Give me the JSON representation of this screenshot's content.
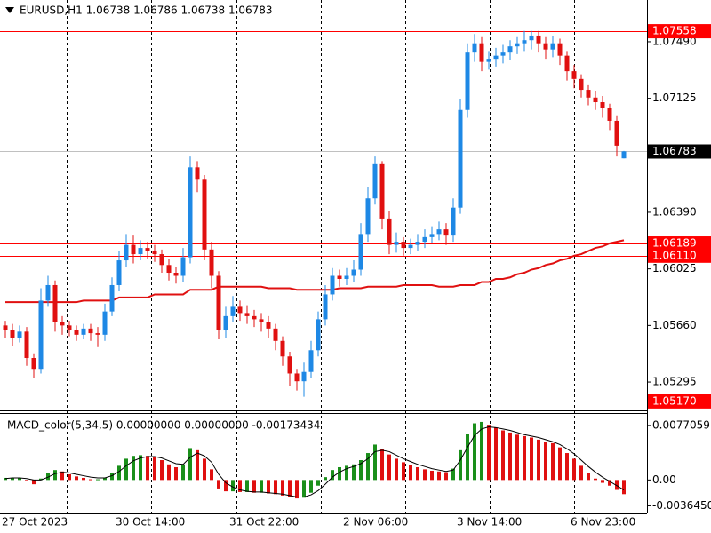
{
  "chart_data": [
    {
      "type": "candlestick",
      "title": "EURUSD,H1  1.06738 1.06786 1.06738 1.06783",
      "categories": [
        "27 Oct 2023",
        null,
        null,
        null,
        null,
        null,
        null,
        null,
        null,
        null,
        null,
        null,
        null,
        null,
        null,
        null,
        "30 Oct 14:00",
        null,
        null,
        null,
        null,
        null,
        null,
        null,
        null,
        null,
        null,
        null,
        null,
        null,
        null,
        null,
        "31 Oct 22:00",
        null,
        null,
        null,
        null,
        null,
        null,
        null,
        null,
        null,
        null,
        null,
        null,
        null,
        null,
        null,
        "2 Nov 06:00",
        null,
        null,
        null,
        null,
        null,
        null,
        null,
        null,
        null,
        null,
        null,
        null,
        null,
        null,
        null,
        "3 Nov 14:00",
        null,
        null,
        null,
        null,
        null,
        null,
        null,
        null,
        null,
        null,
        null,
        null,
        null,
        null,
        null,
        "6 Nov 23:00",
        null,
        null,
        null,
        null,
        null,
        null,
        null
      ],
      "open": [
        1.0566,
        1.0563,
        1.0558,
        1.0562,
        1.0545,
        1.0538,
        1.0582,
        1.0592,
        1.0568,
        1.0566,
        1.0563,
        1.056,
        1.0564,
        1.0561,
        1.056,
        1.0575,
        1.0592,
        1.0608,
        1.0618,
        1.0612,
        1.0616,
        1.0614,
        1.0612,
        1.0605,
        1.06,
        1.0598,
        1.061,
        1.0668,
        1.066,
        1.0615,
        1.0598,
        1.0563,
        1.0572,
        1.0578,
        1.0574,
        1.0572,
        1.057,
        1.0568,
        1.0564,
        1.0556,
        1.0546,
        1.0535,
        1.053,
        1.0536,
        1.055,
        1.057,
        1.0586,
        1.0598,
        1.0596,
        1.0598,
        1.0602,
        1.0625,
        1.0648,
        1.067,
        1.0635,
        1.0618,
        1.062,
        1.0616,
        1.0618,
        1.062,
        1.0623,
        1.0625,
        1.0628,
        1.0624,
        1.0642,
        1.0705,
        1.0742,
        1.0748,
        1.0736,
        1.0738,
        1.074,
        1.0742,
        1.0746,
        1.0748,
        1.075,
        1.0753,
        1.0748,
        1.0744,
        1.0748,
        1.074,
        1.073,
        1.0725,
        1.0718,
        1.0713,
        1.071,
        1.0706,
        1.0698,
        1.06738
      ],
      "high": [
        1.0569,
        1.0567,
        1.0566,
        1.0565,
        1.0548,
        1.059,
        1.0598,
        1.0595,
        1.0572,
        1.0569,
        1.0566,
        1.0567,
        1.0567,
        1.0565,
        1.058,
        1.0597,
        1.0614,
        1.0625,
        1.0624,
        1.0621,
        1.062,
        1.0618,
        1.0615,
        1.0609,
        1.0604,
        1.0616,
        1.0675,
        1.0672,
        1.0663,
        1.062,
        1.0601,
        1.0578,
        1.0585,
        1.0582,
        1.0579,
        1.0576,
        1.0574,
        1.0572,
        1.0567,
        1.0559,
        1.0549,
        1.0538,
        1.0542,
        1.0556,
        1.0575,
        1.0592,
        1.0603,
        1.0602,
        1.0603,
        1.0608,
        1.0632,
        1.0655,
        1.0675,
        1.0672,
        1.064,
        1.0626,
        1.0623,
        1.0622,
        1.0625,
        1.0628,
        1.063,
        1.0633,
        1.0632,
        1.0648,
        1.0712,
        1.0748,
        1.0754,
        1.0752,
        1.0743,
        1.0745,
        1.0747,
        1.075,
        1.0752,
        1.0756,
        1.0756,
        1.0756,
        1.0752,
        1.0753,
        1.0751,
        1.0743,
        1.0734,
        1.0728,
        1.0721,
        1.0717,
        1.0714,
        1.0709,
        1.0701,
        1.06786
      ],
      "low": [
        1.0558,
        1.0553,
        1.0555,
        1.054,
        1.0532,
        1.0535,
        1.0578,
        1.0562,
        1.056,
        1.0559,
        1.0556,
        1.0557,
        1.0556,
        1.0552,
        1.0556,
        1.0572,
        1.0588,
        1.0604,
        1.0606,
        1.0608,
        1.0609,
        1.0607,
        1.06,
        1.0595,
        1.0593,
        1.0594,
        1.0606,
        1.0652,
        1.0608,
        1.059,
        1.0557,
        1.0558,
        1.0568,
        1.0569,
        1.0567,
        1.0565,
        1.0562,
        1.0558,
        1.055,
        1.054,
        1.0527,
        1.0524,
        1.052,
        1.0532,
        1.0546,
        1.0566,
        1.0582,
        1.0591,
        1.0592,
        1.0594,
        1.0598,
        1.062,
        1.0644,
        1.0628,
        1.0612,
        1.0613,
        1.0611,
        1.0612,
        1.0614,
        1.0616,
        1.0619,
        1.0621,
        1.0618,
        1.062,
        1.0638,
        1.07,
        1.0736,
        1.073,
        1.0731,
        1.0733,
        1.0735,
        1.0737,
        1.0741,
        1.0743,
        1.0744,
        1.0742,
        1.0738,
        1.0739,
        1.0734,
        1.0724,
        1.0719,
        1.0713,
        1.0708,
        1.0705,
        1.07,
        1.0692,
        1.0675,
        1.06738
      ],
      "close": [
        1.0563,
        1.0558,
        1.0562,
        1.0545,
        1.0538,
        1.0582,
        1.0592,
        1.0568,
        1.0566,
        1.0563,
        1.056,
        1.0564,
        1.0561,
        1.056,
        1.0575,
        1.0592,
        1.0608,
        1.0618,
        1.0612,
        1.0616,
        1.0614,
        1.0612,
        1.0605,
        1.06,
        1.0598,
        1.061,
        1.0668,
        1.066,
        1.0615,
        1.0598,
        1.0563,
        1.0572,
        1.0578,
        1.0574,
        1.0572,
        1.057,
        1.0568,
        1.0564,
        1.0556,
        1.0546,
        1.0535,
        1.053,
        1.0536,
        1.055,
        1.057,
        1.0586,
        1.0598,
        1.0596,
        1.0598,
        1.0602,
        1.0625,
        1.0648,
        1.067,
        1.0635,
        1.0618,
        1.062,
        1.0616,
        1.0618,
        1.062,
        1.0623,
        1.0625,
        1.0628,
        1.0624,
        1.0642,
        1.0705,
        1.0742,
        1.0748,
        1.0736,
        1.0738,
        1.074,
        1.0742,
        1.0746,
        1.0748,
        1.075,
        1.0753,
        1.0748,
        1.0744,
        1.0748,
        1.074,
        1.073,
        1.0725,
        1.0718,
        1.0713,
        1.071,
        1.0706,
        1.0698,
        1.0682,
        1.06783
      ],
      "ma": [
        1.0581,
        1.0581,
        1.0581,
        1.0581,
        1.0581,
        1.0581,
        1.0581,
        1.0581,
        1.0581,
        1.0581,
        1.0581,
        1.0582,
        1.0582,
        1.0582,
        1.0582,
        1.0582,
        1.0584,
        1.0584,
        1.0584,
        1.0584,
        1.0584,
        1.0586,
        1.0586,
        1.0586,
        1.0586,
        1.0586,
        1.0589,
        1.0589,
        1.0589,
        1.0589,
        1.0591,
        1.0591,
        1.0591,
        1.0591,
        1.0591,
        1.0591,
        1.0591,
        1.059,
        1.059,
        1.059,
        1.059,
        1.0589,
        1.0589,
        1.0589,
        1.0589,
        1.0589,
        1.0589,
        1.059,
        1.059,
        1.059,
        1.059,
        1.0591,
        1.0591,
        1.0591,
        1.0591,
        1.0591,
        1.0592,
        1.0592,
        1.0592,
        1.0592,
        1.0592,
        1.0591,
        1.0591,
        1.0591,
        1.0592,
        1.0592,
        1.0592,
        1.0594,
        1.0594,
        1.0596,
        1.0596,
        1.0597,
        1.0599,
        1.06,
        1.0602,
        1.0603,
        1.0605,
        1.0606,
        1.0608,
        1.0609,
        1.0611,
        1.0612,
        1.0614,
        1.0616,
        1.0617,
        1.0619,
        1.062,
        1.0621
      ],
      "up_color": "#1e88e5",
      "down_color": "#e01010",
      "ma_color": "#e01010",
      "ylim": [
        1.05112,
        1.07759
      ],
      "yticks": [
        {
          "value": 1.0749,
          "label": "1.07490"
        },
        1.07125,
        {
          "value": 1.0639,
          "label": "1.06390"
        },
        1.06025,
        {
          "value": 1.0566,
          "label": "1.05660"
        },
        1.05295
      ],
      "levels": [
        1.07558,
        1.06189,
        {
          "value": 1.0611,
          "label": "1.06110"
        },
        {
          "value": 1.0517,
          "label": "1.05170"
        }
      ],
      "level_color": "#ff0000",
      "current_price": 1.06783
    },
    {
      "type": "bar",
      "title": "MACD_color(5,34,5) 0.00000000 0.00000000 -0.00173434",
      "values": [
        0.0003,
        0.0003,
        0.0003,
        0.0,
        -0.0006,
        0.0002,
        0.001,
        0.0014,
        0.0012,
        0.0008,
        0.0005,
        0.0003,
        0.0001,
        0.0001,
        0.0003,
        0.001,
        0.002,
        0.003,
        0.0034,
        0.0035,
        0.0034,
        0.0032,
        0.0028,
        0.0022,
        0.0018,
        0.0022,
        0.0045,
        0.0042,
        0.003,
        0.0015,
        -0.0012,
        -0.0016,
        -0.0016,
        -0.0017,
        -0.0017,
        -0.0018,
        -0.0018,
        -0.0019,
        -0.002,
        -0.0022,
        -0.0024,
        -0.0026,
        -0.0025,
        -0.0018,
        -0.0008,
        0.0004,
        0.0014,
        0.0018,
        0.002,
        0.0022,
        0.0028,
        0.0038,
        0.005,
        0.0044,
        0.0036,
        0.003,
        0.0025,
        0.0021,
        0.0018,
        0.0015,
        0.0013,
        0.0012,
        0.0011,
        0.0016,
        0.0042,
        0.0065,
        0.008,
        0.0082,
        0.0078,
        0.0074,
        0.007,
        0.0067,
        0.0064,
        0.0062,
        0.006,
        0.0057,
        0.0054,
        0.0052,
        0.0046,
        0.0038,
        0.003,
        0.002,
        0.001,
        0.0002,
        -0.0004,
        -0.0008,
        -0.0014,
        -0.002
      ],
      "signal": [
        0.0002,
        0.0003,
        0.0003,
        0.0002,
        0.0,
        0.0,
        0.0004,
        0.0009,
        0.0011,
        0.001,
        0.0008,
        0.0006,
        0.0004,
        0.0003,
        0.0003,
        0.0006,
        0.0012,
        0.002,
        0.0027,
        0.0031,
        0.0033,
        0.0033,
        0.0031,
        0.0027,
        0.0023,
        0.0022,
        0.0032,
        0.0038,
        0.0034,
        0.0025,
        0.0008,
        -0.0004,
        -0.001,
        -0.0014,
        -0.0016,
        -0.0017,
        -0.0017,
        -0.0018,
        -0.0019,
        -0.002,
        -0.0022,
        -0.0024,
        -0.0024,
        -0.0021,
        -0.0015,
        -0.0006,
        0.0004,
        0.0011,
        0.0016,
        0.0019,
        0.0023,
        0.003,
        0.004,
        0.0042,
        0.004,
        0.0035,
        0.003,
        0.0026,
        0.0022,
        0.0019,
        0.0016,
        0.0014,
        0.0012,
        0.0014,
        0.0028,
        0.0046,
        0.0063,
        0.0072,
        0.0075,
        0.0074,
        0.0072,
        0.007,
        0.0067,
        0.0064,
        0.0062,
        0.006,
        0.0057,
        0.0054,
        0.005,
        0.0044,
        0.0037,
        0.0028,
        0.0019,
        0.0011,
        0.0004,
        -0.0002,
        -0.0008,
        -0.0014
      ],
      "up_color": "#1a8f1a",
      "down_color": "#e01010",
      "signal_color": "#000000",
      "ylim": [
        -0.00472,
        0.00932
      ],
      "yticks": [
        0.0077059,
        {
          "value": 0,
          "label": "0.00"
        },
        {
          "value": -0.003645,
          "label": "-0.0036450"
        }
      ]
    }
  ]
}
